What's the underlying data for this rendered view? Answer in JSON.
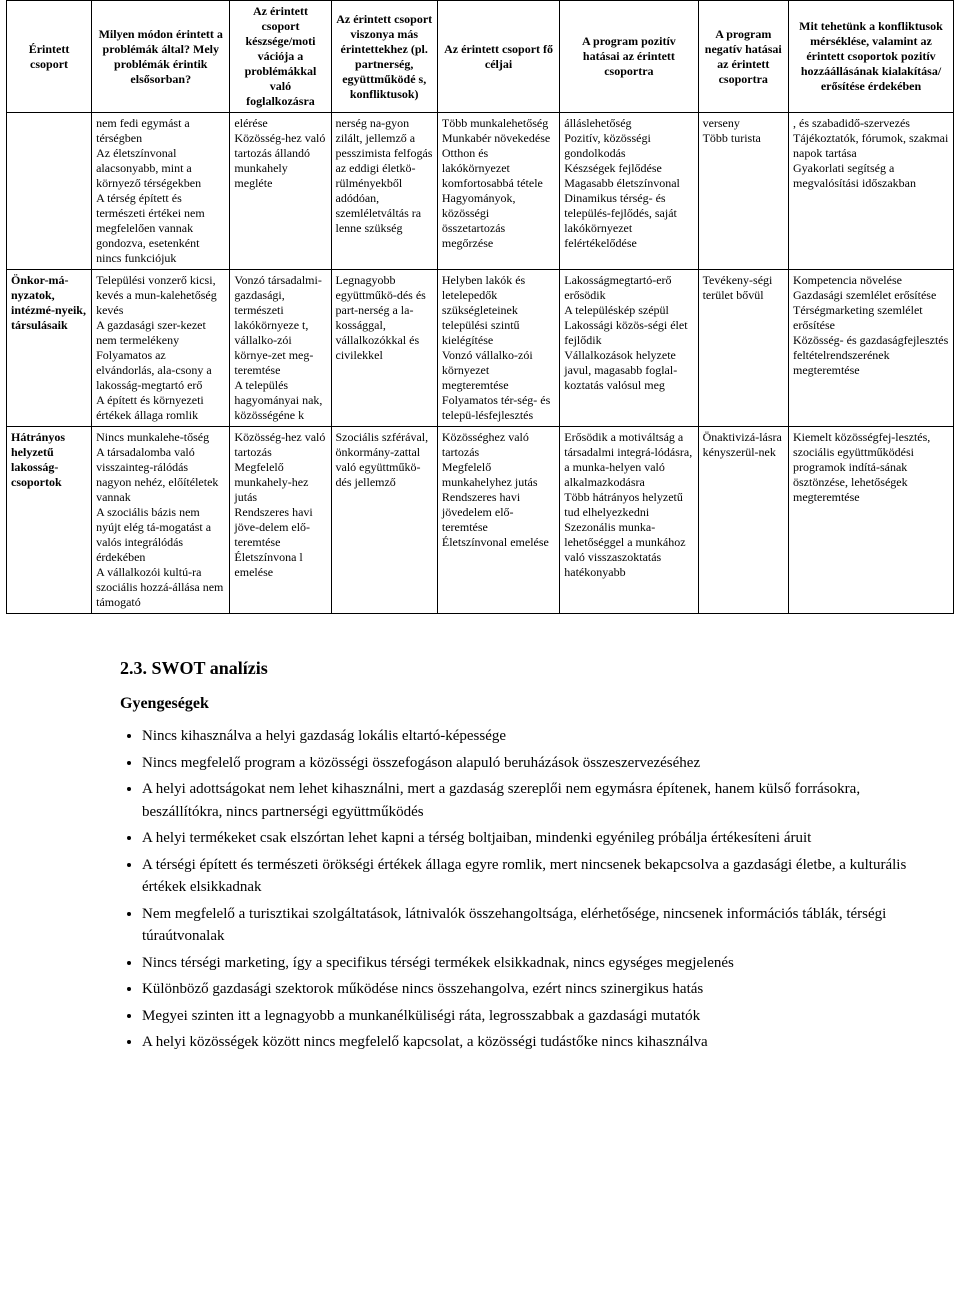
{
  "table": {
    "headers": [
      "Érintett csoport",
      "Milyen módon érintett a problémák által? Mely problémák érintik elsősorban?",
      "Az érintett csoport készsége/moti vációja a problémákkal való foglalkozásra",
      "Az érintett csoport viszonya más érintettekhez (pl. partnerség, együttműködé s, konfliktusok)",
      "Az érintett csoport fő céljai",
      "A program pozitív hatásai az érintett csoportra",
      "A program negatív hatásai az érintett csoportra",
      "Mit tehetünk a konfliktusok mérséklése, valamint az érintett csoportok pozitív hozzáállásának kialakítása/ erősítése érdekében"
    ],
    "col_widths": [
      "80px",
      "130px",
      "95px",
      "100px",
      "115px",
      "130px",
      "85px",
      "155px"
    ],
    "rows": [
      {
        "label": "",
        "cells": [
          "nem fedi egymást a térségben\nAz életszínvonal alacsonyabb, mint a környező térségekben\nA térség épített és természeti értékei nem megfelelően vannak gondozva, esetenként nincs funkciójuk",
          "elérése\nKözösség-hez való tartozás állandó munkahely megléte",
          "nerség na-gyon zilált, jellemző a pesszimista felfogás az eddigi életkö-rülményekből adódóan, szemléletváltás ra lenne szükség",
          "Több munkalehetőség\nMunkabér növekedése\nOtthon és lakókörnyezet komfortosabbá tétele\nHagyományok, közösségi összetartozás megőrzése",
          "álláslehetőség\nPozitív, közösségi gondolkodás\nKészségek fejlődése\nMagasabb életszínvonal\nDinamikus térség- és település-fejlődés, saját lakókörnyezet felértékelődése",
          "verseny\nTöbb turista",
          ", és szabadidő-szervezés\nTájékoztatók, fórumok, szakmai napok tartása\nGyakorlati segítség a megvalósítási időszakban"
        ]
      },
      {
        "label": "Önkor-má-nyzatok, intézmé-nyeik, társulásaik",
        "cells": [
          "Települési vonzerő kicsi, kevés a mun-kalehetőség kevés\nA gazdasági szer-kezet nem termelékeny\nFolyamatos az elvándorlás, ala-csony a lakosság-megtartó erő\nA épített és környezeti értékek állaga romlik",
          "Vonzó társadalmi-gazdasági, természeti lakókörnyeze t, vállalko-zói környe-zet meg-teremtése\nA település hagyományai nak, közösségéne k",
          "Legnagyobb együttműkö-dés és part-nerség a la-kossággal, vállalkozókkal és civilekkel",
          "Helyben lakók és letelepedők szükségleteinek települési szintű kielégítése\nVonzó vállalko-zói környezet megteremtése\nFolyamatos tér-ség- és telepü-lésfejlesztés",
          "Lakosságmegtartó-erő erősödik\nA településkép szépül\nLakossági közös-ségi élet fejlődik\nVállalkozások helyzete javul, magasabb foglal-koztatás valósul meg",
          "Tevékeny-ségi terület bővül",
          "Kompetencia növelése\nGazdasági szemlélet erősítése\nTérségmarketing szemlélet erősítése\nKözösség- és gazdaságfejlesztés feltételrendszerének megteremtése"
        ]
      },
      {
        "label": "Hátrányos helyzetű lakosság-csoportok",
        "cells": [
          "Nincs munkalehe-tőség\nA társadalomba való visszainteg-rálódás nagyon nehéz, előítéletek vannak\nA szociális bázis nem nyújt elég tá-mogatást a valós integrálódás érdekében\nA vállalkozói kultú-ra szociális hozzá-állása nem támogató",
          "Közösség-hez való tartozás\nMegfelelő munkahely-hez jutás\nRendszeres havi jöve-delem elő-teremtése\nÉletszínvona l emelése",
          "Szociális szférával, önkormány-zattal való együttműkö-dés jellemző",
          "Közösséghez való tartozás\nMegfelelő munkahelyhez jutás\nRendszeres havi jövedelem elő-teremtése\nÉletszínvonal emelése",
          "Erősödik a motiváltság a társadalmi integrá-lódásra, a munka-helyen való alkalmazkodásra\nTöbb hátrányos helyzetű tud elhelyezkedni\nSzezonális munka-lehetőséggel a munkához való visszaszoktatás hatékonyabb",
          "Önaktivizá-lásra kényszerül-nek",
          "Kiemelt közösségfej-lesztés, szociális együttműködési programok indítá-sának ösztönzése, lehetőségek megteremtése"
        ]
      }
    ]
  },
  "section": {
    "heading": "2.3. SWOT analízis",
    "subheading": "Gyengeségek",
    "bullets": [
      "Nincs kihasználva a helyi gazdaság lokális eltartó-képessége",
      "Nincs megfelelő program a közösségi összefogáson alapuló beruházások összeszervezéséhez",
      "A helyi adottságokat nem lehet kihasználni, mert a gazdaság szereplői nem egymásra építenek, hanem külső forrásokra, beszállítókra, nincs partnerségi együttműködés",
      "A helyi termékeket csak elszórtan lehet kapni a térség boltjaiban, mindenki egyénileg próbálja értékesíteni áruit",
      "A térségi épített és természeti örökségi értékek állaga egyre romlik, mert nincsenek bekapcsolva a gazdasági életbe, a kulturális értékek elsikkadnak",
      "Nem megfelelő a turisztikai szolgáltatások, látnivalók összehangoltsága, elérhetősége, nincsenek információs táblák, térségi túraútvonalak",
      "Nincs térségi marketing, így a specifikus térségi termékek elsikkadnak, nincs egységes megjelenés",
      "Különböző gazdasági szektorok működése nincs összehangolva, ezért nincs szinergikus hatás",
      "Megyei szinten itt a legnagyobb a munkanélküliségi ráta, legrosszabbak a gazdasági mutatók",
      "A helyi közösségek között nincs megfelelő kapcsolat, a közösségi tudástőke nincs kihasználva"
    ]
  }
}
